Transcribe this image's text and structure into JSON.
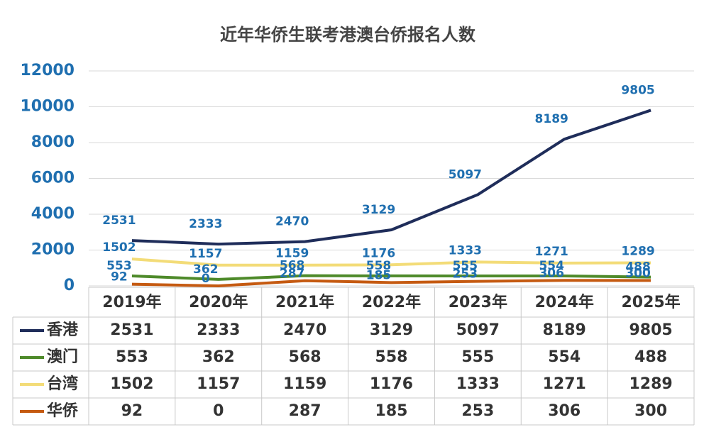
{
  "chart_data": {
    "type": "line",
    "title": "近年华侨生联考港澳台侨报名人数",
    "categories": [
      "2019年",
      "2020年",
      "2021年",
      "2022年",
      "2023年",
      "2024年",
      "2025年"
    ],
    "series": [
      {
        "name": "香港",
        "color": "#1f2d5a",
        "values": [
          2531,
          2333,
          2470,
          3129,
          5097,
          8189,
          9805
        ]
      },
      {
        "name": "澳门",
        "color": "#4e8a2a",
        "values": [
          553,
          362,
          568,
          558,
          555,
          554,
          488
        ]
      },
      {
        "name": "台湾",
        "color": "#f3dc78",
        "values": [
          1502,
          1157,
          1159,
          1176,
          1333,
          1271,
          1289
        ]
      },
      {
        "name": "华侨",
        "color": "#c55a11",
        "values": [
          92,
          0,
          287,
          185,
          253,
          306,
          300
        ]
      }
    ],
    "ylim": [
      0,
      12000
    ],
    "yticks": [
      0,
      2000,
      4000,
      6000,
      8000,
      10000,
      12000
    ],
    "grid": true
  }
}
